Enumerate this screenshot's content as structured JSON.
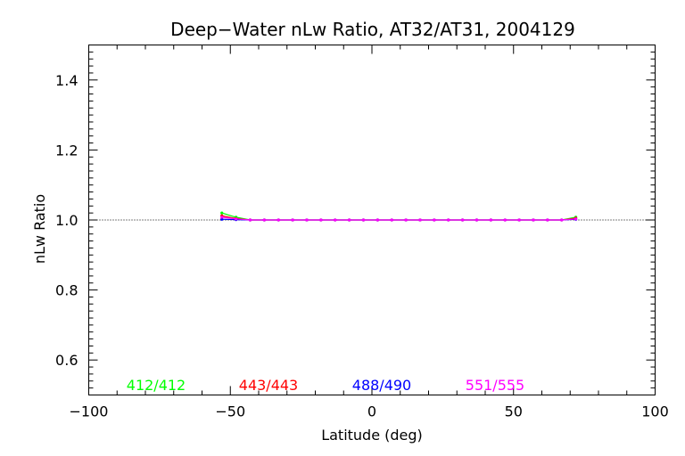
{
  "chart_data": {
    "type": "line",
    "title": "Deep−Water nLw Ratio, AT32/AT31, 2004129",
    "xlabel": "Latitude (deg)",
    "ylabel": "nLw Ratio",
    "xlim": [
      -100,
      100
    ],
    "ylim": [
      0.5,
      1.5
    ],
    "x_ticks": [
      -100,
      -50,
      0,
      50,
      100
    ],
    "x_tick_labels": [
      "−100",
      "−50",
      "0",
      "50",
      "100"
    ],
    "y_ticks": [
      0.6,
      0.8,
      1.0,
      1.2,
      1.4
    ],
    "y_tick_labels": [
      "0.6",
      "0.8",
      "1.0",
      "1.2",
      "1.4"
    ],
    "reference_line": {
      "y": 1.0,
      "style": "dotted"
    },
    "x": [
      -53,
      -48,
      -43,
      -38,
      -33,
      -28,
      -23,
      -18,
      -13,
      -8,
      -3,
      2,
      7,
      12,
      17,
      22,
      27,
      32,
      37,
      42,
      47,
      52,
      57,
      62,
      67,
      72
    ],
    "series": [
      {
        "name": "412/412",
        "color": "#00ff00",
        "values": [
          1.02,
          1.008,
          1.0,
          1.0,
          1.0,
          1.0,
          1.0,
          1.0,
          1.0,
          1.0,
          1.0,
          1.0,
          1.0,
          1.0,
          1.0,
          1.0,
          1.0,
          1.0,
          1.0,
          1.0,
          1.0,
          1.0,
          1.0,
          1.0,
          1.0,
          1.008
        ]
      },
      {
        "name": "443/443",
        "color": "#ff0000",
        "values": [
          1.012,
          1.004,
          1.0,
          1.0,
          1.0,
          1.0,
          1.0,
          1.0,
          1.0,
          1.0,
          1.0,
          1.0,
          1.0,
          1.0,
          1.0,
          1.0,
          1.0,
          1.0,
          1.0,
          1.0,
          1.0,
          1.0,
          1.0,
          1.0,
          1.0,
          1.005
        ]
      },
      {
        "name": "488/490",
        "color": "#0000ff",
        "values": [
          1.002,
          1.001,
          1.0,
          1.0,
          1.0,
          1.0,
          1.0,
          1.0,
          1.0,
          1.0,
          1.0,
          1.0,
          1.0,
          1.0,
          1.0,
          1.0,
          1.0,
          1.0,
          1.0,
          1.0,
          1.0,
          1.0,
          1.0,
          1.0,
          1.0,
          1.002
        ]
      },
      {
        "name": "551/555",
        "color": "#ff00ff",
        "values": [
          1.008,
          1.003,
          1.0,
          1.0,
          1.0,
          1.0,
          1.0,
          1.0,
          1.0,
          1.0,
          1.0,
          1.0,
          1.0,
          1.0,
          1.0,
          1.0,
          1.0,
          1.0,
          1.0,
          1.0,
          1.0,
          1.0,
          1.0,
          1.0,
          1.0,
          1.003
        ]
      }
    ],
    "legend_placement": "bottom-inside",
    "grid": false
  }
}
